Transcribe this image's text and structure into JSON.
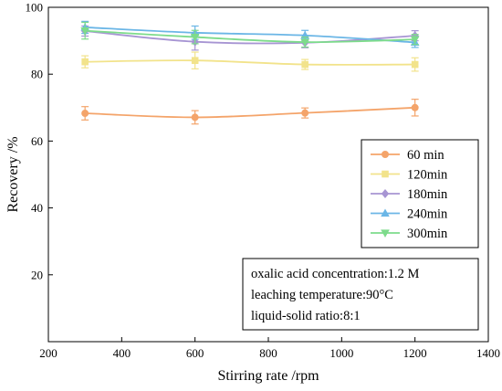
{
  "chart_data": {
    "type": "line",
    "xlabel": "Stirring rate /rpm",
    "ylabel": "Recovery /%",
    "xlim": [
      200,
      1400
    ],
    "ylim": [
      0,
      100
    ],
    "x_ticks": [
      200,
      400,
      600,
      800,
      1000,
      1200,
      1400
    ],
    "y_ticks": [
      20,
      40,
      60,
      80,
      100
    ],
    "x": [
      300,
      600,
      900,
      1200
    ],
    "legend_position": "right, lower-middle",
    "grid": false,
    "series": [
      {
        "name": "60  min",
        "color": "#f4a46a",
        "marker": "circle",
        "values": [
          68.3,
          67.1,
          68.4,
          70.0
        ],
        "errors": [
          2.0,
          2.0,
          1.5,
          2.5
        ]
      },
      {
        "name": "120min",
        "color": "#f2e38b",
        "marker": "square",
        "values": [
          83.7,
          84.1,
          82.9,
          82.9
        ],
        "errors": [
          1.8,
          2.5,
          1.5,
          2.0
        ]
      },
      {
        "name": "180min",
        "color": "#a795d3",
        "marker": "diamond",
        "values": [
          92.9,
          89.7,
          89.4,
          91.5
        ],
        "errors": [
          1.5,
          2.5,
          1.5,
          1.5
        ]
      },
      {
        "name": "240min",
        "color": "#6bb6e6",
        "marker": "triangle-up",
        "values": [
          94.0,
          92.4,
          91.6,
          89.5
        ],
        "errors": [
          1.8,
          2.0,
          1.5,
          1.5
        ]
      },
      {
        "name": "300min",
        "color": "#7ddb8b",
        "marker": "triangle-down",
        "values": [
          93.0,
          91.1,
          89.6,
          90.4
        ],
        "errors": [
          2.5,
          2.0,
          1.5,
          1.5
        ]
      }
    ],
    "annotation": {
      "lines": [
        "oxalic acid concentration:1.2 M",
        "leaching temperature:90°C",
        "liquid-solid ratio:8:1"
      ]
    }
  }
}
